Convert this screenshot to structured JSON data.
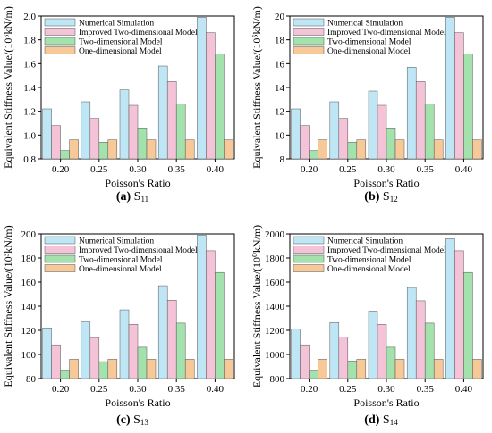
{
  "colors": {
    "numerical": "#bfe6f5",
    "improved": "#f4c3d7",
    "two_dim": "#a3e1ad",
    "one_dim": "#f7c898",
    "stroke": "#555555"
  },
  "chart_data": [
    {
      "type": "bar",
      "panel_letter": "(a)",
      "caption_main": "S",
      "caption_sub": "11",
      "categories": [
        "0.20",
        "0.25",
        "0.30",
        "0.35",
        "0.40"
      ],
      "xlabel": "Poisson's Ratio",
      "ylabel": "Equivalent Stiffness Value/(10⁶kN/m)",
      "ylim": [
        0.8,
        2.0
      ],
      "yticks": [
        "0.8",
        "1.0",
        "1.2",
        "1.4",
        "1.6",
        "1.8",
        "2.0"
      ],
      "legend_position": "top-left",
      "series": [
        {
          "name": "Numerical Simulation",
          "values": [
            1.22,
            1.28,
            1.38,
            1.58,
            1.99
          ]
        },
        {
          "name": "Improved Two-dimensional Model",
          "values": [
            1.08,
            1.14,
            1.25,
            1.45,
            1.86
          ]
        },
        {
          "name": "Two-dimensional Model",
          "values": [
            0.87,
            0.94,
            1.06,
            1.26,
            1.68
          ]
        },
        {
          "name": "One-dimensional Model",
          "values": [
            0.96,
            0.96,
            0.96,
            0.96,
            0.96
          ]
        }
      ]
    },
    {
      "type": "bar",
      "panel_letter": "(b)",
      "caption_main": "S",
      "caption_sub": "12",
      "categories": [
        "0.20",
        "0.25",
        "0.30",
        "0.35",
        "0.40"
      ],
      "xlabel": "Poisson's Ratio",
      "ylabel": "Equivalent Stiffness Value/(10⁵kN/m)",
      "ylim": [
        8,
        20
      ],
      "yticks": [
        "8",
        "10",
        "12",
        "14",
        "16",
        "18",
        "20"
      ],
      "legend_position": "top-left",
      "series": [
        {
          "name": "Numerical Simulation",
          "values": [
            12.2,
            12.8,
            13.7,
            15.7,
            19.9
          ]
        },
        {
          "name": "Improved Two-dimensional Model",
          "values": [
            10.8,
            11.4,
            12.5,
            14.5,
            18.6
          ]
        },
        {
          "name": "Two-dimensional Model",
          "values": [
            8.7,
            9.4,
            10.6,
            12.6,
            16.8
          ]
        },
        {
          "name": "One-dimensional Model",
          "values": [
            9.6,
            9.6,
            9.6,
            9.6,
            9.6
          ]
        }
      ]
    },
    {
      "type": "bar",
      "panel_letter": "(c)",
      "caption_main": "S",
      "caption_sub": "13",
      "categories": [
        "0.20",
        "0.25",
        "0.30",
        "0.35",
        "0.40"
      ],
      "xlabel": "Poisson's Ratio",
      "ylabel": "Equivalent Stiffness Value/(10³kN/m)",
      "ylim": [
        80,
        200
      ],
      "yticks": [
        "80",
        "100",
        "120",
        "140",
        "160",
        "180",
        "200"
      ],
      "legend_position": "top-left",
      "series": [
        {
          "name": "Numerical Simulation",
          "values": [
            122,
            127,
            137,
            157,
            199
          ]
        },
        {
          "name": "Improved Two-dimensional Model",
          "values": [
            108,
            114,
            125,
            145,
            186
          ]
        },
        {
          "name": "Two-dimensional Model",
          "values": [
            87,
            94,
            106,
            126,
            168
          ]
        },
        {
          "name": "One-dimensional Model",
          "values": [
            96,
            96,
            96,
            96,
            96
          ]
        }
      ]
    },
    {
      "type": "bar",
      "panel_letter": "(d)",
      "caption_main": "S",
      "caption_sub": "14",
      "categories": [
        "0.20",
        "0.25",
        "0.30",
        "0.35",
        "0.40"
      ],
      "xlabel": "Poisson's Ratio",
      "ylabel": "Equivalent Stiffness Value/(10⁰kN/m)",
      "ylim": [
        800,
        2000
      ],
      "yticks": [
        "800",
        "1000",
        "1200",
        "1400",
        "1600",
        "1800",
        "2000"
      ],
      "legend_position": "top-left",
      "series": [
        {
          "name": "Numerical Simulation",
          "values": [
            1210,
            1265,
            1360,
            1555,
            1960
          ]
        },
        {
          "name": "Improved Two-dimensional Model",
          "values": [
            1080,
            1145,
            1250,
            1445,
            1860
          ]
        },
        {
          "name": "Two-dimensional Model",
          "values": [
            870,
            945,
            1060,
            1260,
            1680
          ]
        },
        {
          "name": "One-dimensional Model",
          "values": [
            960,
            960,
            960,
            960,
            960
          ]
        }
      ]
    }
  ]
}
